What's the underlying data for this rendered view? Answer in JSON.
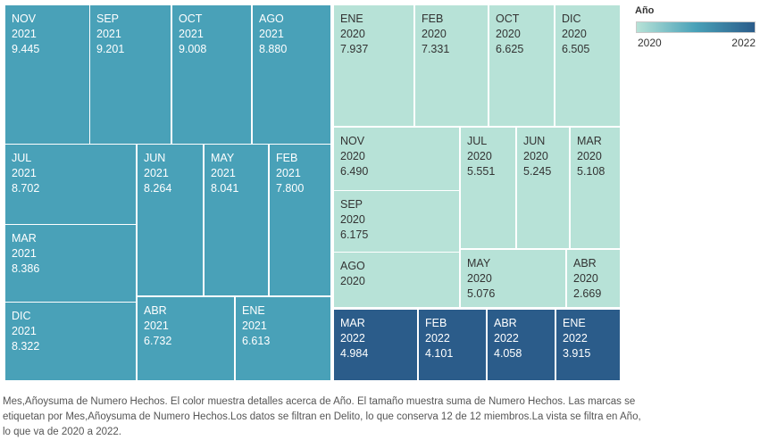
{
  "chart_data": {
    "type": "treemap",
    "color_legend": {
      "title": "Año",
      "min_label": "2020",
      "max_label": "2022",
      "min_color": "#b7e2d7",
      "mid_color": "#49a1b8",
      "max_color": "#2b5c8a"
    },
    "years": {
      "2021": "#49a1b8",
      "2020": "#b7e2d7",
      "2022": "#2b5c8a"
    },
    "cells": [
      {
        "month": "NOV",
        "year": "2021",
        "value": "9.445"
      },
      {
        "month": "SEP",
        "year": "2021",
        "value": "9.201"
      },
      {
        "month": "OCT",
        "year": "2021",
        "value": "9.008"
      },
      {
        "month": "AGO",
        "year": "2021",
        "value": "8.880"
      },
      {
        "month": "JUL",
        "year": "2021",
        "value": "8.702"
      },
      {
        "month": "JUN",
        "year": "2021",
        "value": "8.264"
      },
      {
        "month": "MAY",
        "year": "2021",
        "value": "8.041"
      },
      {
        "month": "FEB",
        "year": "2021",
        "value": "7.800"
      },
      {
        "month": "MAR",
        "year": "2021",
        "value": "8.386"
      },
      {
        "month": "DIC",
        "year": "2021",
        "value": "8.322"
      },
      {
        "month": "ABR",
        "year": "2021",
        "value": "6.732"
      },
      {
        "month": "ENE",
        "year": "2021",
        "value": "6.613"
      },
      {
        "month": "ENE",
        "year": "2020",
        "value": "7.937"
      },
      {
        "month": "FEB",
        "year": "2020",
        "value": "7.331"
      },
      {
        "month": "OCT",
        "year": "2020",
        "value": "6.625"
      },
      {
        "month": "DIC",
        "year": "2020",
        "value": "6.505"
      },
      {
        "month": "NOV",
        "year": "2020",
        "value": "6.490"
      },
      {
        "month": "JUL",
        "year": "2020",
        "value": "5.551"
      },
      {
        "month": "JUN",
        "year": "2020",
        "value": "5.245"
      },
      {
        "month": "MAR",
        "year": "2020",
        "value": "5.108"
      },
      {
        "month": "SEP",
        "year": "2020",
        "value": "6.175"
      },
      {
        "month": "AGO",
        "year": "2020",
        "value": ""
      },
      {
        "month": "MAY",
        "year": "2020",
        "value": "5.076"
      },
      {
        "month": "ABR",
        "year": "2020",
        "value": "2.669"
      },
      {
        "month": "MAR",
        "year": "2022",
        "value": "4.984"
      },
      {
        "month": "FEB",
        "year": "2022",
        "value": "4.101"
      },
      {
        "month": "ABR",
        "year": "2022",
        "value": "4.058"
      },
      {
        "month": "ENE",
        "year": "2022",
        "value": "3.915"
      }
    ]
  },
  "caption": "Mes,Añoysuma de Numero Hechos. El color muestra detalles acerca de Año. El tamaño muestra suma de Numero Hechos. Las marcas se etiquetan por Mes,Añoysuma de Numero Hechos.Los datos se filtran en Delito, lo que conserva 12 de 12 miembros.La vista se filtra en Año, lo que va de 2020 a 2022."
}
